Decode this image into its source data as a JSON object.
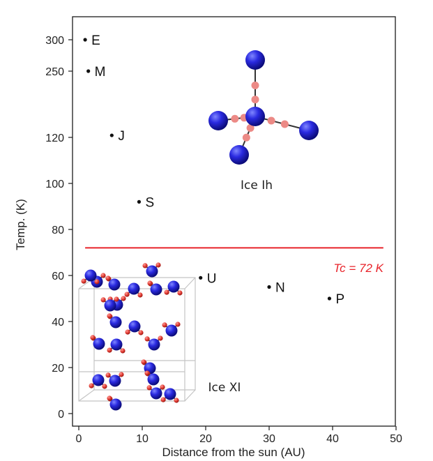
{
  "chart_data": {
    "type": "scatter",
    "xlabel": "Distance from the sun (AU)",
    "ylabel": "Temp. (K)",
    "xlim": [
      0,
      50
    ],
    "x_ticks": [
      "0",
      "10",
      "20",
      "30",
      "40",
      "50"
    ],
    "y_ticks": [
      {
        "value": 0,
        "label": "0"
      },
      {
        "value": 20,
        "label": "20"
      },
      {
        "value": 40,
        "label": "40"
      },
      {
        "value": 60,
        "label": "60"
      },
      {
        "value": 80,
        "label": "80"
      },
      {
        "value": 100,
        "label": "100"
      },
      {
        "value": 120,
        "label": "120"
      },
      {
        "value": 250,
        "label": "250"
      },
      {
        "value": 300,
        "label": "300"
      }
    ],
    "points": [
      {
        "label": "E",
        "x": 1,
        "y": 300
      },
      {
        "label": "M",
        "x": 1.5,
        "y": 250
      },
      {
        "label": "J",
        "x": 5.2,
        "y": 124
      },
      {
        "label": "S",
        "x": 9.5,
        "y": 92
      },
      {
        "label": "U",
        "x": 19.2,
        "y": 59
      },
      {
        "label": "N",
        "x": 30,
        "y": 55
      },
      {
        "label": "P",
        "x": 39.5,
        "y": 50
      }
    ],
    "threshold": {
      "value": 72,
      "x_range": [
        1,
        48
      ],
      "color": "#e8232a"
    },
    "annotations": {
      "tc_prefix": "Tc",
      "tc_suffix": " = 72 K",
      "ice_ih": "Ice Ih",
      "ice_xi": "Ice XI"
    },
    "colors": {
      "oxygen": "#1f1fc8",
      "hydrogen": "#e8453c",
      "proton_ih": "#ec8a86",
      "frame": "#c4c4c4"
    }
  }
}
